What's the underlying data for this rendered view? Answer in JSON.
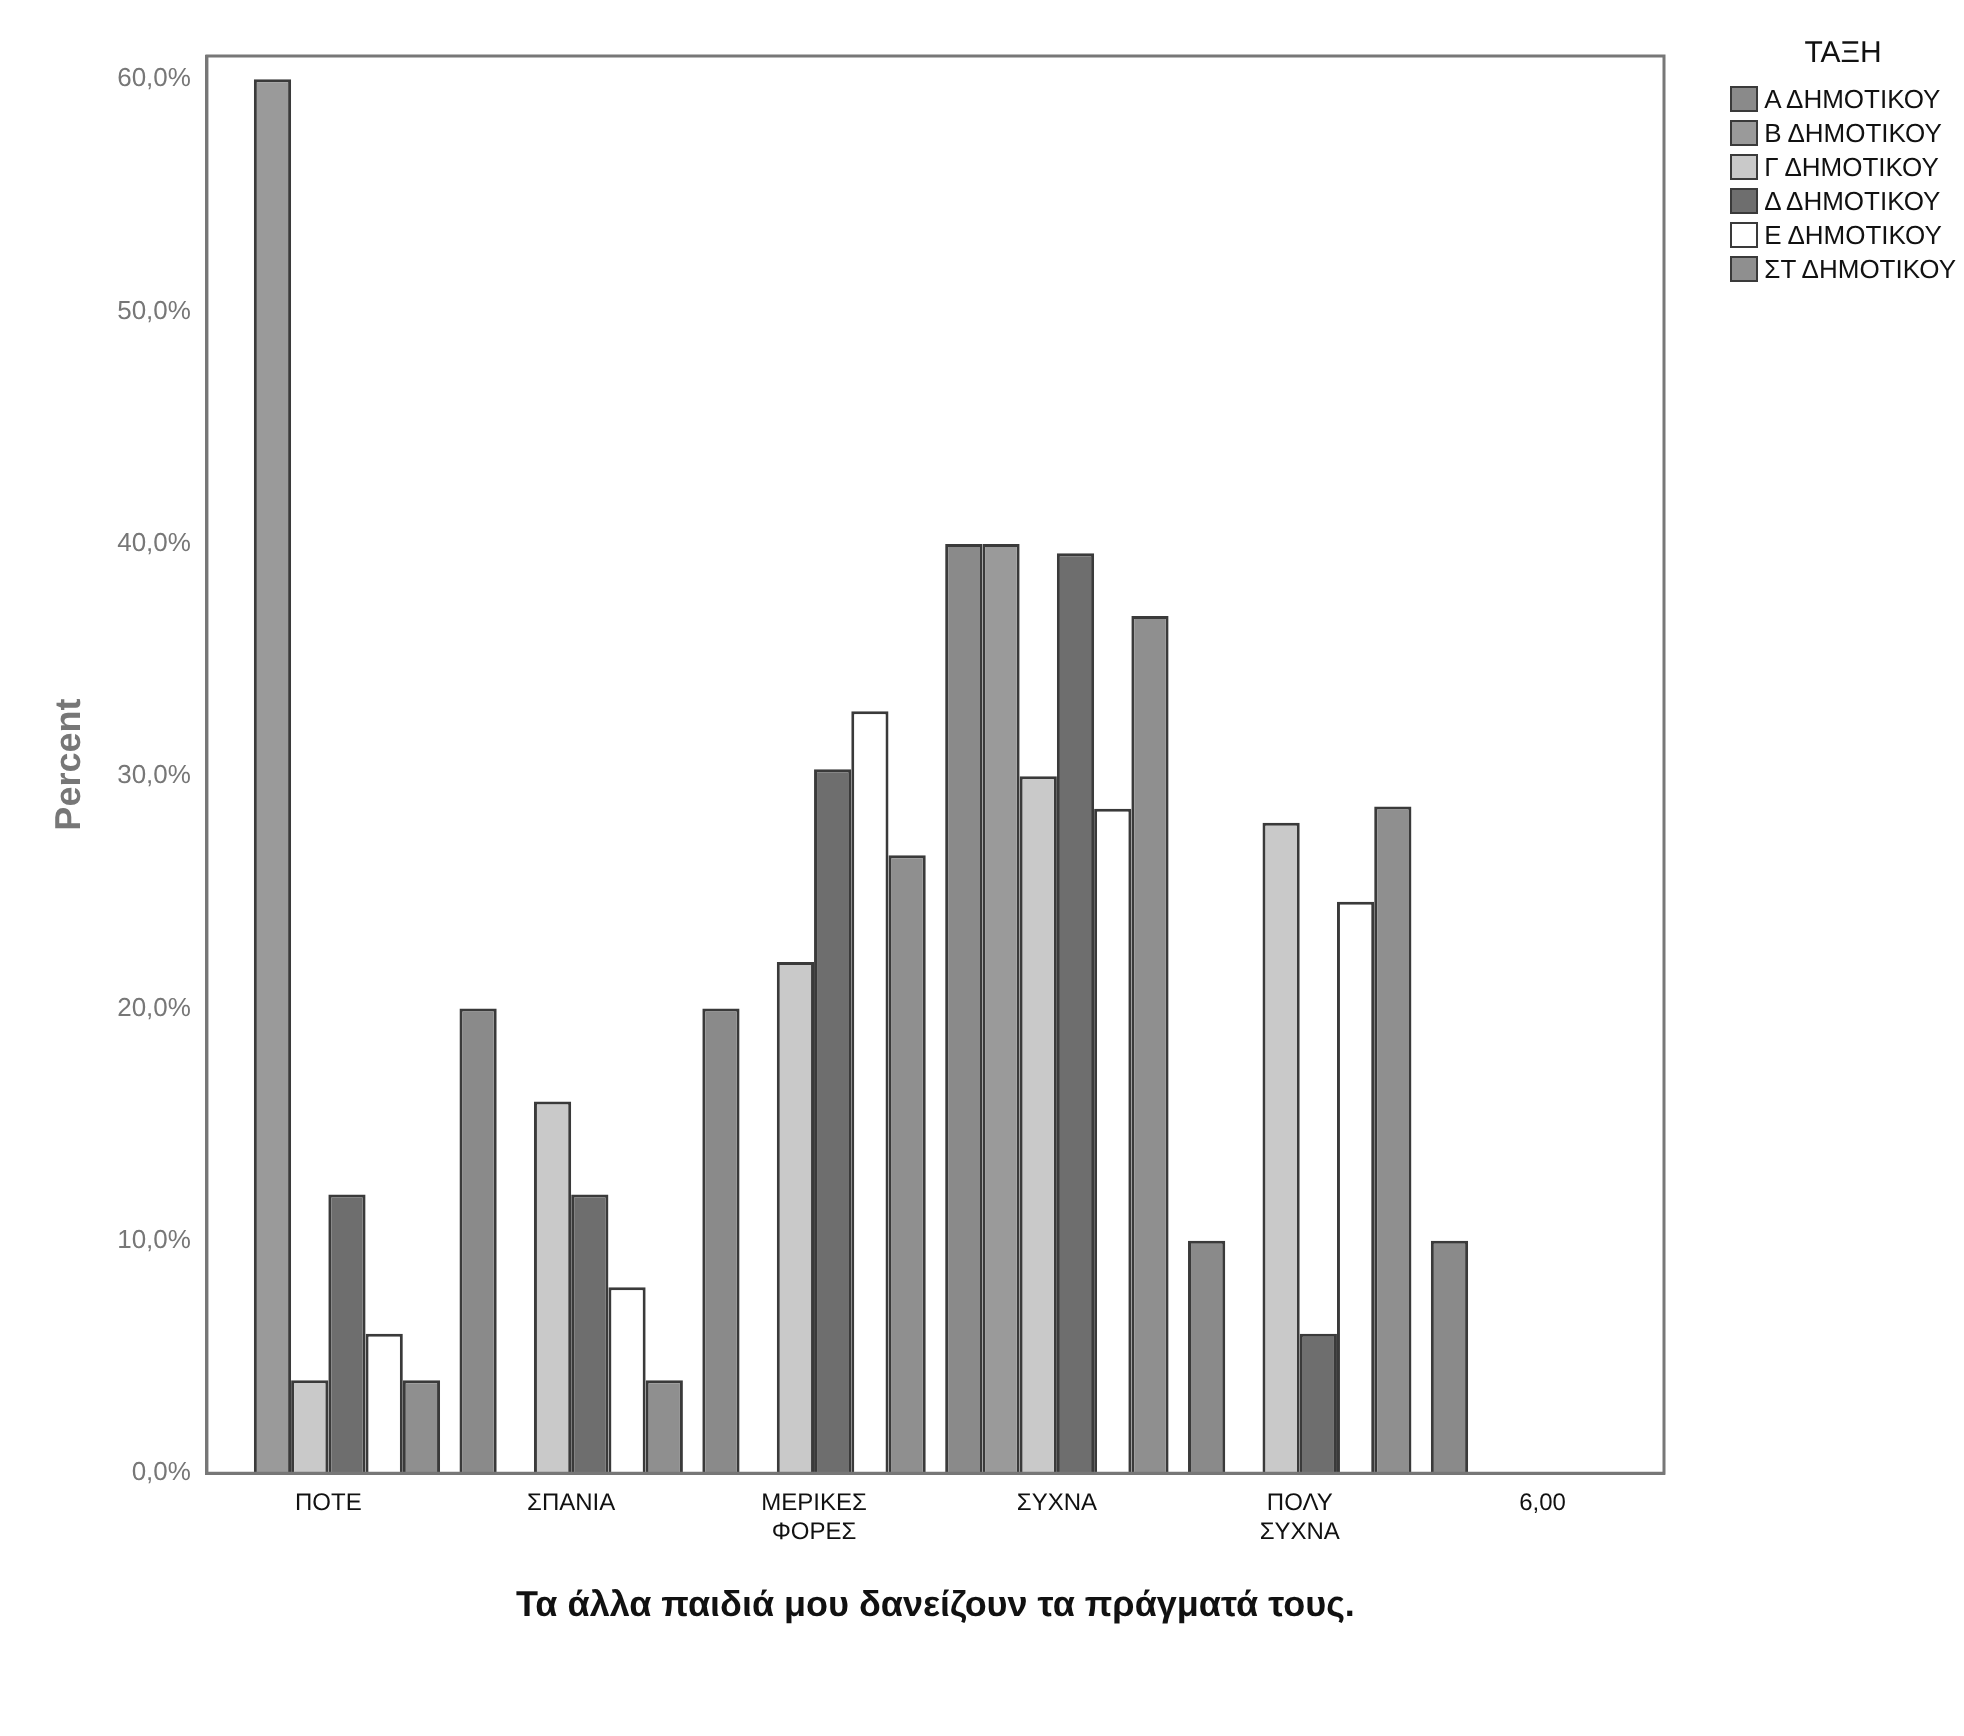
{
  "chart_data": {
    "type": "bar",
    "xlabel": "Τα άλλα παιδιά μου δανείζουν τα πράγματά τους.",
    "ylabel": "Percent",
    "legend_title": "ΤΑΞΗ",
    "legend": "top right",
    "grid": false,
    "categories": [
      "ΠΟΤΕ",
      "ΣΠΑΝΙΑ",
      "ΜΕΡΙΚΕΣ ΦΟΡΕΣ",
      "ΣΥΧΝΑ",
      "ΠΟΛΥ ΣΥΧΝΑ",
      "6,00"
    ],
    "ylim": [
      0,
      61
    ],
    "yticks": [
      {
        "value": 0,
        "label": "0,0%"
      },
      {
        "value": 10,
        "label": "10,0%"
      },
      {
        "value": 20,
        "label": "20,0%"
      },
      {
        "value": 30,
        "label": "30,0%"
      },
      {
        "value": 40,
        "label": "40,0%"
      },
      {
        "value": 50,
        "label": "50,0%"
      },
      {
        "value": 60,
        "label": "60,0%"
      }
    ],
    "series": [
      {
        "name": "Α ΔΗΜΟΤΙΚΟΥ",
        "color": "#8a8a8a",
        "values": [
          0,
          20,
          20,
          40,
          10,
          10
        ]
      },
      {
        "name": "Β ΔΗΜΟΤΙΚΟΥ",
        "color": "#9a9a9a",
        "values": [
          60,
          0,
          0,
          40,
          0,
          0
        ]
      },
      {
        "name": "Γ ΔΗΜΟΤΙΚΟΥ",
        "color": "#c9c9c9",
        "values": [
          4,
          16,
          22,
          30,
          28,
          0
        ]
      },
      {
        "name": "Δ ΔΗΜΟΤΙΚΟΥ",
        "color": "#6e6e6e",
        "values": [
          12,
          12,
          30.3,
          39.6,
          6,
          0
        ]
      },
      {
        "name": "Ε ΔΗΜΟΤΙΚΟΥ",
        "color": "#ffffff",
        "values": [
          6,
          8,
          32.8,
          28.6,
          24.6,
          0
        ]
      },
      {
        "name": "ΣΤ ΔΗΜΟΤΙΚΟΥ",
        "color": "#8f8f8f",
        "values": [
          4,
          4,
          26.6,
          36.9,
          28.7,
          0
        ]
      }
    ]
  }
}
